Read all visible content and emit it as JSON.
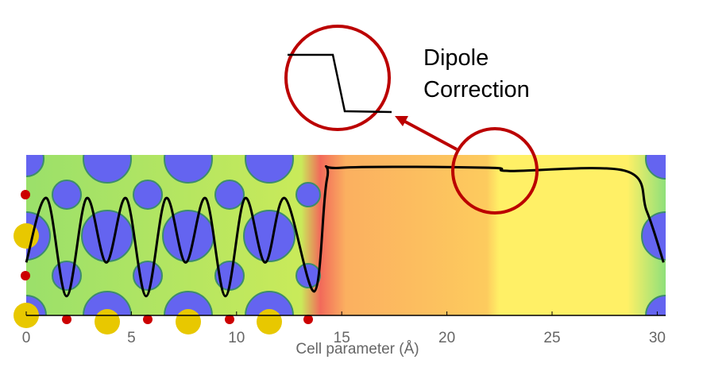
{
  "chart_data": {
    "type": "line",
    "xlabel": "Cell parameter (Å)",
    "annotation": "Dipole Correction",
    "xlim": [
      0,
      30.4
    ],
    "xticks": [
      0,
      5,
      10,
      15,
      20,
      25,
      30
    ],
    "ylim": [
      0,
      1
    ],
    "series": [
      {
        "color": "#000000",
        "x": [
          0,
          0.98,
          1.92,
          2.87,
          3.81,
          4.75,
          5.7,
          6.64,
          7.58,
          8.53,
          9.47,
          10.4,
          11.36,
          12.3,
          13.7,
          14.3,
          15,
          22,
          23,
          28.5,
          29.5,
          30.3
        ],
        "values": [
          0.33,
          0.73,
          0.12,
          0.73,
          0.33,
          0.73,
          0.12,
          0.73,
          0.33,
          0.73,
          0.12,
          0.73,
          0.33,
          0.73,
          0.15,
          0.85,
          0.92,
          0.92,
          0.9,
          0.9,
          0.65,
          0.33
        ]
      }
    ]
  }
}
